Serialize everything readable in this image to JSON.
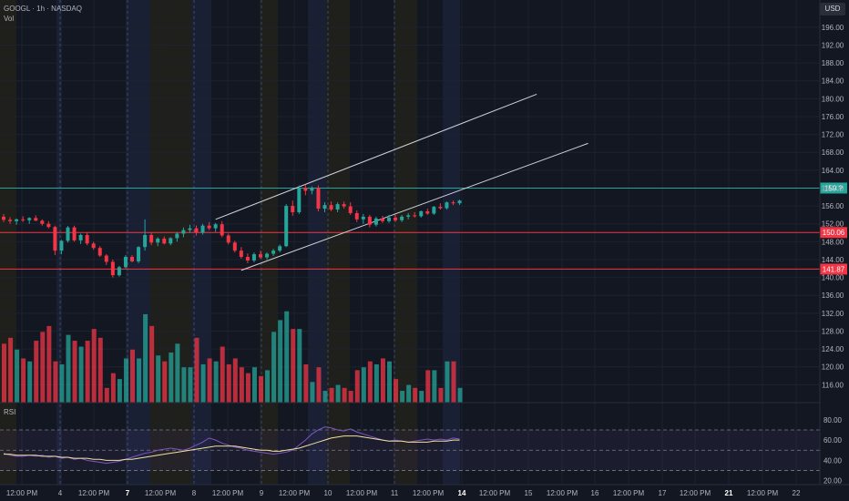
{
  "header": {
    "title": "GOOGL · 1h · NASDAQ",
    "vol_label": "Vol"
  },
  "currency_button": "USD",
  "chart_data": {
    "type": "candlestick",
    "price_axis": {
      "ylim": [
        112,
        198
      ],
      "ticks": [
        "116.00",
        "120.00",
        "124.00",
        "128.00",
        "132.00",
        "136.00",
        "140.00",
        "144.00",
        "148.00",
        "152.00",
        "156.00",
        "160.00",
        "164.00",
        "168.00",
        "172.00",
        "176.00",
        "180.00",
        "184.00",
        "188.00",
        "192.00",
        "196.00"
      ]
    },
    "rsi_axis": {
      "label": "RSI",
      "ylim": [
        16,
        88
      ],
      "ticks": [
        "20.00",
        "40.00",
        "60.00",
        "80.00"
      ],
      "bands": [
        30,
        50,
        70
      ]
    },
    "x_ticks": [
      "12:00 PM",
      "4",
      "12:00 PM",
      "7",
      "12:00 PM",
      "8",
      "12:00 PM",
      "9",
      "12:00 PM",
      "10",
      "12:00 PM",
      "11",
      "12:00 PM",
      "14",
      "12:00 PM",
      "15",
      "12:00 PM",
      "16",
      "12:00 PM",
      "17",
      "12:00 PM",
      "21",
      "12:00 PM",
      "22"
    ],
    "bold_x_ticks": [
      "7",
      "14",
      "21"
    ],
    "levels": [
      {
        "label": "159.?",
        "value": 160.0,
        "color": "#26a69a"
      },
      {
        "label": "150.06",
        "value": 150.06,
        "color": "#f23645"
      },
      {
        "label": "141.87",
        "value": 141.87,
        "color": "#f23645"
      }
    ],
    "channel": {
      "upper": {
        "from": [
          33,
          153.0
        ],
        "to": [
          83,
          181.0
        ]
      },
      "lower": {
        "from": [
          37,
          141.6
        ],
        "to": [
          91,
          170.0
        ]
      }
    },
    "candles": [
      [
        153.6,
        154.2,
        152.4,
        152.9
      ],
      [
        152.9,
        153.5,
        152.0,
        152.6
      ],
      [
        152.6,
        153.2,
        151.8,
        153.0
      ],
      [
        153.0,
        153.7,
        152.4,
        152.8
      ],
      [
        152.8,
        153.5,
        152.0,
        153.3
      ],
      [
        153.3,
        153.9,
        152.6,
        152.7
      ],
      [
        152.7,
        153.0,
        151.6,
        152.0
      ],
      [
        152.0,
        152.6,
        151.0,
        151.3
      ],
      [
        151.3,
        151.6,
        145.0,
        146.0
      ],
      [
        146.0,
        148.4,
        145.2,
        148.2
      ],
      [
        148.2,
        151.5,
        147.8,
        151.2
      ],
      [
        151.2,
        151.6,
        148.0,
        148.3
      ],
      [
        148.3,
        149.8,
        147.5,
        149.5
      ],
      [
        149.5,
        150.0,
        147.2,
        147.6
      ],
      [
        147.6,
        148.0,
        146.2,
        146.6
      ],
      [
        146.6,
        147.0,
        144.6,
        144.9
      ],
      [
        144.9,
        145.2,
        142.8,
        143.5
      ],
      [
        143.5,
        144.0,
        140.0,
        140.5
      ],
      [
        140.5,
        142.6,
        140.2,
        142.3
      ],
      [
        142.3,
        145.0,
        142.0,
        144.6
      ],
      [
        144.6,
        145.0,
        143.4,
        143.6
      ],
      [
        143.6,
        147.0,
        143.2,
        146.8
      ],
      [
        146.8,
        153.0,
        146.0,
        149.5
      ],
      [
        149.5,
        150.0,
        147.2,
        147.8
      ],
      [
        147.8,
        149.0,
        147.0,
        148.7
      ],
      [
        148.7,
        149.2,
        147.4,
        147.6
      ],
      [
        147.6,
        149.0,
        147.2,
        148.8
      ],
      [
        148.8,
        150.2,
        148.0,
        149.8
      ],
      [
        149.8,
        151.2,
        149.0,
        150.6
      ],
      [
        150.6,
        151.8,
        150.0,
        151.0
      ],
      [
        151.0,
        151.6,
        149.4,
        150.0
      ],
      [
        150.0,
        152.0,
        149.6,
        151.6
      ],
      [
        151.6,
        152.4,
        150.6,
        151.0
      ],
      [
        151.0,
        152.2,
        150.2,
        151.9
      ],
      [
        151.9,
        152.6,
        149.0,
        149.4
      ],
      [
        149.4,
        149.8,
        147.4,
        147.8
      ],
      [
        147.8,
        148.2,
        145.6,
        146.0
      ],
      [
        146.0,
        146.8,
        144.2,
        144.6
      ],
      [
        144.6,
        145.4,
        143.2,
        143.8
      ],
      [
        143.8,
        145.6,
        143.4,
        145.2
      ],
      [
        145.2,
        146.0,
        144.2,
        144.5
      ],
      [
        144.5,
        145.6,
        144.0,
        145.3
      ],
      [
        145.3,
        146.4,
        144.8,
        146.0
      ],
      [
        146.0,
        147.4,
        145.6,
        147.0
      ],
      [
        147.0,
        156.4,
        146.8,
        156.0
      ],
      [
        156.0,
        157.2,
        153.8,
        154.6
      ],
      [
        154.6,
        160.6,
        154.2,
        160.0
      ],
      [
        160.0,
        160.8,
        158.4,
        159.4
      ],
      [
        159.4,
        160.4,
        158.6,
        160.0
      ],
      [
        160.0,
        160.6,
        154.8,
        155.4
      ],
      [
        155.4,
        156.8,
        154.6,
        156.2
      ],
      [
        156.2,
        157.0,
        154.8,
        155.2
      ],
      [
        155.2,
        156.8,
        154.6,
        156.4
      ],
      [
        156.4,
        157.0,
        155.4,
        155.9
      ],
      [
        155.9,
        156.8,
        154.0,
        154.4
      ],
      [
        154.4,
        155.0,
        152.4,
        153.0
      ],
      [
        153.0,
        154.2,
        152.0,
        153.6
      ],
      [
        153.6,
        154.0,
        151.2,
        151.8
      ],
      [
        151.8,
        153.6,
        151.4,
        153.2
      ],
      [
        153.2,
        153.8,
        152.2,
        152.6
      ],
      [
        152.6,
        154.0,
        152.2,
        153.4
      ],
      [
        153.4,
        154.0,
        152.4,
        152.8
      ],
      [
        152.8,
        154.0,
        152.4,
        153.6
      ],
      [
        153.6,
        154.4,
        153.0,
        153.9
      ],
      [
        153.9,
        154.6,
        153.4,
        153.7
      ],
      [
        153.7,
        155.0,
        153.4,
        154.8
      ],
      [
        154.8,
        155.4,
        154.0,
        154.3
      ],
      [
        154.3,
        156.0,
        154.0,
        155.8
      ],
      [
        155.8,
        156.6,
        155.2,
        155.5
      ],
      [
        155.5,
        157.0,
        155.2,
        156.8
      ],
      [
        156.8,
        157.2,
        156.2,
        156.6
      ],
      [
        156.6,
        157.4,
        156.2,
        157.2
      ]
    ],
    "volumes": [
      20,
      22,
      18,
      15,
      14,
      21,
      24,
      26,
      14,
      13,
      23,
      21,
      19,
      21,
      25,
      22,
      5,
      10,
      8,
      15,
      18,
      15,
      30,
      26,
      16,
      14,
      17,
      20,
      12,
      12,
      22,
      13,
      15,
      14,
      19,
      13,
      15,
      12,
      10,
      12,
      9,
      11,
      24,
      28,
      31,
      25,
      25,
      13,
      7,
      12,
      4,
      5,
      6,
      5,
      4,
      11,
      12,
      14,
      13,
      15,
      14,
      8,
      4,
      6,
      5,
      4,
      11,
      11,
      5,
      14,
      14,
      5
    ],
    "rsi_line": [
      47,
      45,
      44,
      44,
      45,
      44,
      45,
      43,
      44,
      42,
      43,
      41,
      42,
      40,
      39,
      38,
      37,
      38,
      39,
      41,
      43,
      45,
      47,
      48,
      50,
      51,
      52,
      51,
      50,
      52,
      55,
      58,
      62,
      60,
      57,
      55,
      53,
      52,
      50,
      49,
      48,
      47,
      46,
      47,
      48,
      50,
      55,
      60,
      66,
      70,
      73,
      72,
      70,
      69,
      71,
      68,
      66,
      64,
      62,
      60,
      59,
      60,
      59,
      58,
      59,
      60,
      61,
      60,
      61,
      60,
      62,
      61
    ],
    "rsi_ma": [
      46,
      46,
      45,
      45,
      45,
      45,
      44,
      44,
      44,
      43,
      43,
      42,
      42,
      42,
      41,
      41,
      40,
      40,
      40,
      41,
      41,
      42,
      43,
      44,
      45,
      46,
      47,
      48,
      49,
      50,
      51,
      52,
      53,
      54,
      54,
      54,
      54,
      53,
      52,
      51,
      50,
      50,
      49,
      49,
      50,
      51,
      52,
      54,
      56,
      58,
      60,
      62,
      63,
      64,
      64,
      64,
      63,
      62,
      61,
      60,
      59,
      59,
      59,
      58,
      58,
      58,
      58,
      59,
      59,
      59,
      60,
      60
    ]
  }
}
